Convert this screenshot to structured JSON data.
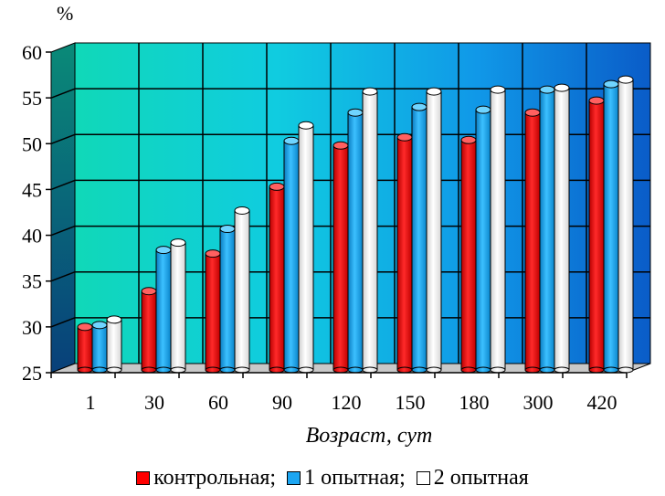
{
  "chart_data": {
    "type": "bar",
    "y_unit": "%",
    "xlabel": "Возраст, сут",
    "ylim": [
      25,
      60
    ],
    "yticks": [
      25,
      30,
      35,
      40,
      45,
      50,
      55,
      60
    ],
    "categories": [
      "1",
      "30",
      "60",
      "90",
      "120",
      "150",
      "180",
      "300",
      "420"
    ],
    "series": [
      {
        "name": "контрольная;",
        "color": "#ff0000",
        "values": [
          29.8,
          33.7,
          37.8,
          45.1,
          49.6,
          50.5,
          50.2,
          53.2,
          54.5
        ]
      },
      {
        "name": "1 опытная;",
        "color": "#1ca6f2",
        "values": [
          30.0,
          38.2,
          40.5,
          50.1,
          53.2,
          53.8,
          53.5,
          55.7,
          56.3
        ]
      },
      {
        "name": "2 опытная",
        "color": "#ffffff",
        "values": [
          30.6,
          39.0,
          42.5,
          51.8,
          55.5,
          55.5,
          55.7,
          55.9,
          56.8
        ]
      }
    ],
    "grid": true,
    "legend_position": "bottom",
    "background": "gradient teal to blue",
    "three_d": true
  }
}
